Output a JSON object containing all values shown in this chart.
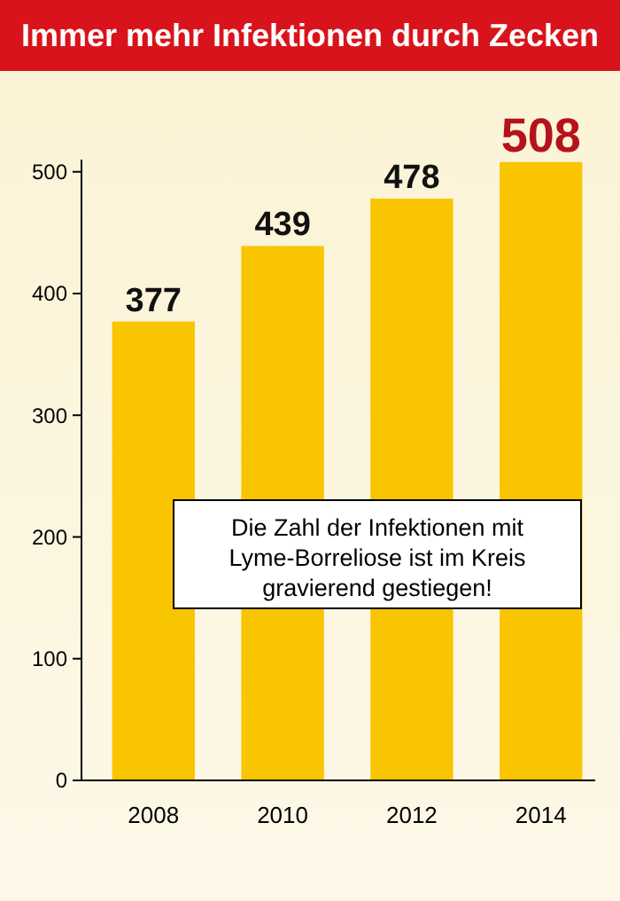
{
  "chart_data": {
    "type": "bar",
    "title": "Immer mehr Infektionen durch Zecken",
    "categories": [
      "2008",
      "2010",
      "2012",
      "2014"
    ],
    "values": [
      377,
      439,
      478,
      508
    ],
    "color": "#f9c400",
    "ylim": [
      0,
      510
    ],
    "yticks": [
      0,
      100,
      200,
      300,
      400,
      500
    ],
    "grid": false,
    "data_labels": true,
    "annotations": [
      "Die Zahl der Infektionen mit Lyme-Borreliose ist im Kreis gravierend gestiegen!"
    ]
  }
}
